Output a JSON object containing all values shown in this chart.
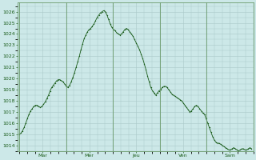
{
  "background_color": "#cce8e8",
  "plot_bg_color": "#cce8e8",
  "line_color": "#1a5c1a",
  "marker_color": "#1a5c1a",
  "grid_color": "#aac8c8",
  "vline_color": "#6a9a6a",
  "tick_label_color": "#1a5c1a",
  "ylim": [
    1013.5,
    1026.8
  ],
  "yticks": [
    1014,
    1015,
    1016,
    1017,
    1018,
    1019,
    1020,
    1021,
    1022,
    1023,
    1024,
    1025,
    1026
  ],
  "day_labels": [
    "Mar",
    "Mer",
    "Jeu",
    "Ven",
    "Sam"
  ],
  "n_points": 144,
  "pressure_values": [
    1015.0,
    1015.1,
    1015.3,
    1015.6,
    1016.0,
    1016.4,
    1016.8,
    1017.1,
    1017.3,
    1017.5,
    1017.6,
    1017.6,
    1017.5,
    1017.4,
    1017.5,
    1017.7,
    1017.9,
    1018.2,
    1018.5,
    1018.9,
    1019.2,
    1019.4,
    1019.6,
    1019.8,
    1019.9,
    1019.9,
    1019.8,
    1019.7,
    1019.5,
    1019.3,
    1019.2,
    1019.4,
    1019.7,
    1020.1,
    1020.5,
    1021.0,
    1021.5,
    1022.0,
    1022.6,
    1023.1,
    1023.6,
    1023.9,
    1024.2,
    1024.4,
    1024.5,
    1024.7,
    1024.9,
    1025.2,
    1025.5,
    1025.7,
    1025.9,
    1026.0,
    1026.1,
    1026.0,
    1025.7,
    1025.3,
    1024.9,
    1024.6,
    1024.4,
    1024.3,
    1024.1,
    1024.0,
    1023.9,
    1024.0,
    1024.2,
    1024.4,
    1024.5,
    1024.4,
    1024.2,
    1024.0,
    1023.8,
    1023.5,
    1023.2,
    1022.9,
    1022.6,
    1022.2,
    1021.8,
    1021.3,
    1020.8,
    1020.2,
    1019.7,
    1019.2,
    1018.9,
    1018.7,
    1018.5,
    1018.7,
    1018.9,
    1019.0,
    1019.2,
    1019.3,
    1019.3,
    1019.2,
    1019.0,
    1018.8,
    1018.6,
    1018.5,
    1018.4,
    1018.3,
    1018.2,
    1018.1,
    1018.0,
    1017.8,
    1017.6,
    1017.4,
    1017.2,
    1017.0,
    1017.1,
    1017.3,
    1017.5,
    1017.6,
    1017.5,
    1017.3,
    1017.1,
    1016.9,
    1016.8,
    1016.4,
    1016.0,
    1015.6,
    1015.2,
    1014.8,
    1014.5,
    1014.3,
    1014.2,
    1014.2,
    1014.1,
    1014.0,
    1013.9,
    1013.8,
    1013.7,
    1013.6,
    1013.6,
    1013.7,
    1013.8,
    1013.7,
    1013.6,
    1013.5,
    1013.6,
    1013.7,
    1013.7,
    1013.6,
    1013.6,
    1013.7,
    1013.8,
    1013.7
  ]
}
